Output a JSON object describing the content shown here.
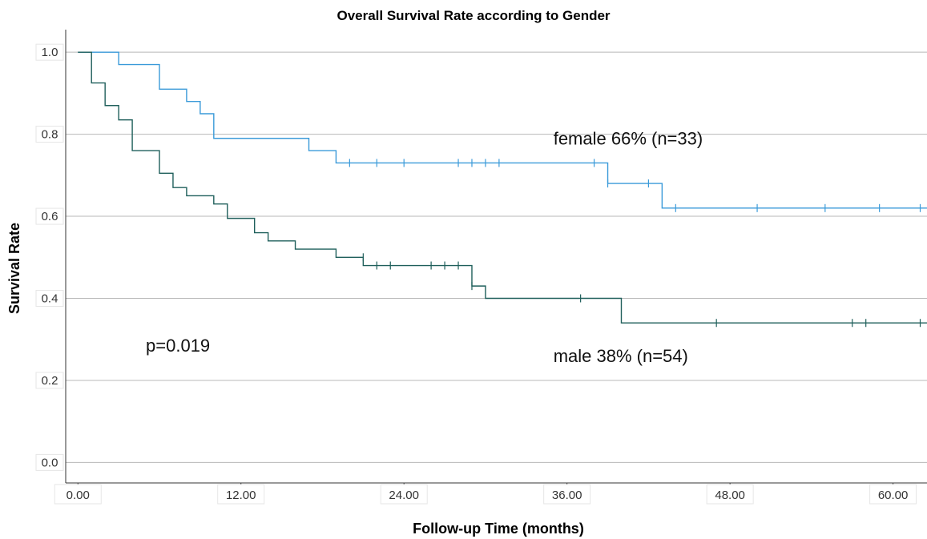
{
  "chart_data": {
    "type": "line",
    "subtype": "kaplan-meier-step",
    "title": "Overall Survival Rate according to Gender",
    "xlabel": "Follow-up Time (months)",
    "ylabel": "Survival Rate",
    "xlim": [
      -0.9,
      62.5
    ],
    "ylim": [
      -0.05,
      1.055
    ],
    "x_ticks": [
      0,
      12,
      24,
      36,
      48,
      60
    ],
    "x_tick_labels": [
      "0.00",
      "12.00",
      "24.00",
      "36.00",
      "48.00",
      "60.00"
    ],
    "y_ticks": [
      0.0,
      0.2,
      0.4,
      0.6,
      0.8,
      1.0
    ],
    "y_tick_labels": [
      "0.0",
      "0.2",
      "0.4",
      "0.6",
      "0.8",
      "1.0"
    ],
    "grid": "horizontal",
    "series": [
      {
        "name": "female",
        "label": "female 66% (n=33)",
        "color": "#3a9ad9",
        "steps": [
          [
            0.0,
            1.0
          ],
          [
            3.0,
            0.97
          ],
          [
            6.0,
            0.91
          ],
          [
            8.0,
            0.88
          ],
          [
            9.0,
            0.85
          ],
          [
            10.0,
            0.79
          ],
          [
            17.0,
            0.76
          ],
          [
            19.0,
            0.73
          ],
          [
            39.0,
            0.68
          ],
          [
            43.0,
            0.62
          ],
          [
            62.5,
            0.62
          ]
        ],
        "censored": [
          [
            20.0,
            0.73
          ],
          [
            22.0,
            0.73
          ],
          [
            24.0,
            0.73
          ],
          [
            28.0,
            0.73
          ],
          [
            29.0,
            0.73
          ],
          [
            30.0,
            0.73
          ],
          [
            31.0,
            0.73
          ],
          [
            38.0,
            0.73
          ],
          [
            39.0,
            0.68
          ],
          [
            42.0,
            0.68
          ],
          [
            44.0,
            0.62
          ],
          [
            50.0,
            0.62
          ],
          [
            55.0,
            0.62
          ],
          [
            59.0,
            0.62
          ],
          [
            62.0,
            0.62
          ]
        ]
      },
      {
        "name": "male",
        "label": "male 38% (n=54)",
        "color": "#1f5f5b",
        "steps": [
          [
            0.0,
            1.0
          ],
          [
            1.0,
            0.925
          ],
          [
            2.0,
            0.87
          ],
          [
            3.0,
            0.835
          ],
          [
            4.0,
            0.76
          ],
          [
            6.0,
            0.705
          ],
          [
            7.0,
            0.67
          ],
          [
            8.0,
            0.65
          ],
          [
            10.0,
            0.63
          ],
          [
            11.0,
            0.595
          ],
          [
            13.0,
            0.56
          ],
          [
            14.0,
            0.54
          ],
          [
            16.0,
            0.52
          ],
          [
            19.0,
            0.5
          ],
          [
            21.0,
            0.48
          ],
          [
            29.0,
            0.43
          ],
          [
            30.0,
            0.4
          ],
          [
            40.0,
            0.34
          ],
          [
            62.5,
            0.34
          ]
        ],
        "censored": [
          [
            21.0,
            0.5
          ],
          [
            22.0,
            0.48
          ],
          [
            23.0,
            0.48
          ],
          [
            26.0,
            0.48
          ],
          [
            27.0,
            0.48
          ],
          [
            28.0,
            0.48
          ],
          [
            29.0,
            0.43
          ],
          [
            37.0,
            0.4
          ],
          [
            47.0,
            0.34
          ],
          [
            57.0,
            0.34
          ],
          [
            58.0,
            0.34
          ],
          [
            62.0,
            0.34
          ]
        ]
      }
    ],
    "annotations": [
      {
        "text": "female 66% (n=33)",
        "x": 35.0,
        "y": 0.775
      },
      {
        "text": "male 38% (n=54)",
        "x": 35.0,
        "y": 0.245
      },
      {
        "text": "p=0.019",
        "x": 5.0,
        "y": 0.27
      }
    ]
  }
}
